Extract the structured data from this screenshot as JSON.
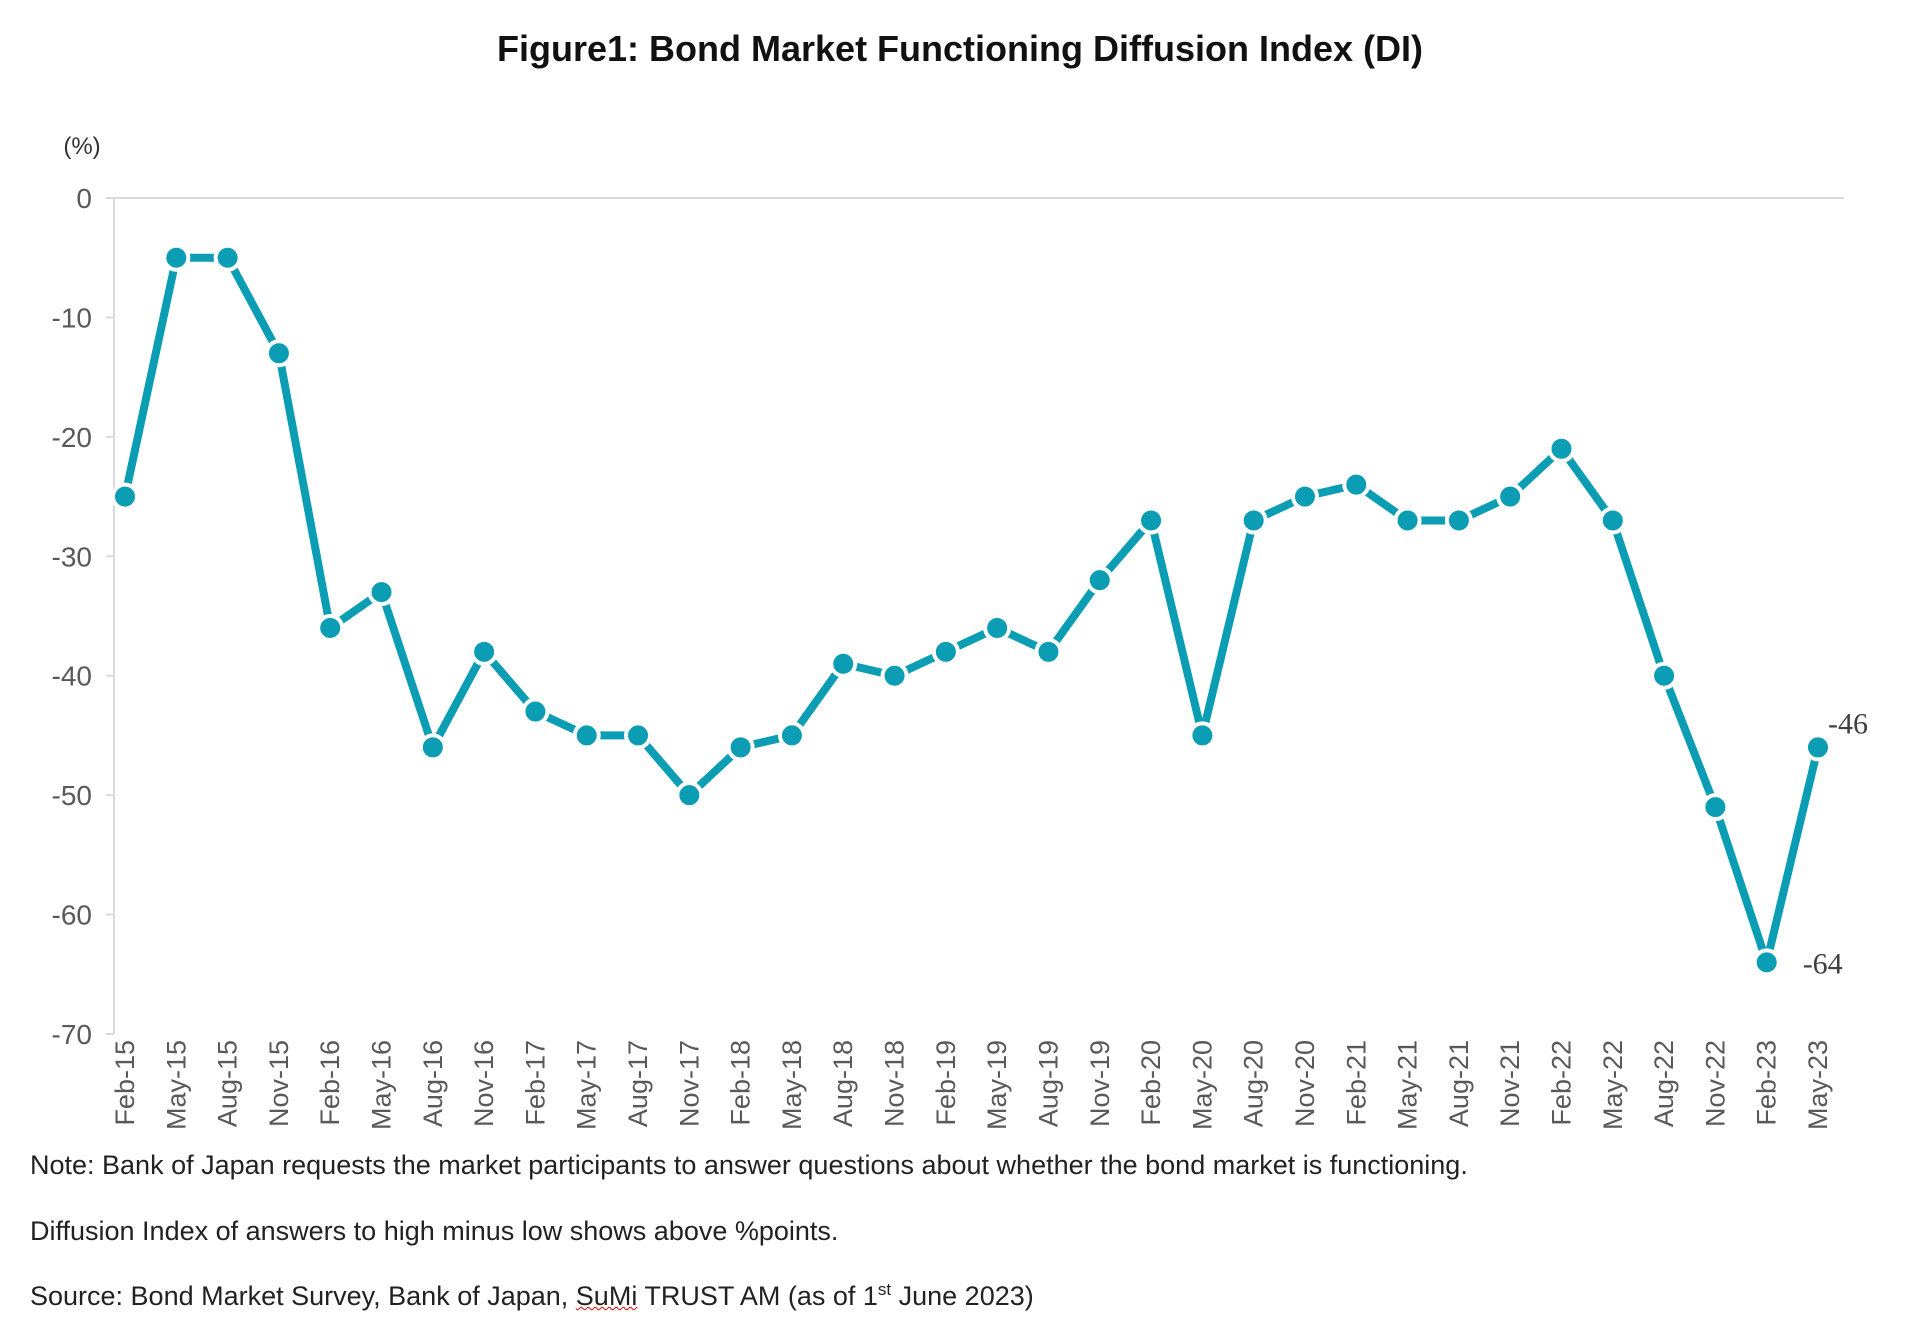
{
  "chart_data": {
    "type": "line",
    "title": "Figure1: Bond Market Functioning Diffusion Index (DI)",
    "ylabel": "(%)",
    "xlabel": "",
    "ylim": [
      -70,
      0
    ],
    "yticks": [
      0,
      -10,
      -20,
      -30,
      -40,
      -50,
      -60,
      -70
    ],
    "grid": false,
    "color": "#0a9db3",
    "categories": [
      "Feb-15",
      "May-15",
      "Aug-15",
      "Nov-15",
      "Feb-16",
      "May-16",
      "Aug-16",
      "Nov-16",
      "Feb-17",
      "May-17",
      "Aug-17",
      "Nov-17",
      "Feb-18",
      "May-18",
      "Aug-18",
      "Nov-18",
      "Feb-19",
      "May-19",
      "Aug-19",
      "Nov-19",
      "Feb-20",
      "May-20",
      "Aug-20",
      "Nov-20",
      "Feb-21",
      "May-21",
      "Aug-21",
      "Nov-21",
      "Feb-22",
      "May-22",
      "Aug-22",
      "Nov-22",
      "Feb-23",
      "May-23"
    ],
    "values": [
      -25,
      -5,
      -5,
      -13,
      -36,
      -33,
      -46,
      -38,
      -43,
      -45,
      -45,
      -50,
      -46,
      -45,
      -39,
      -40,
      -38,
      -36,
      -38,
      -32,
      -27,
      -45,
      -27,
      -25,
      -24,
      -27,
      -27,
      -25,
      -21,
      -27,
      -40,
      -51,
      -64,
      -46
    ],
    "data_labels": [
      {
        "category": "Feb-23",
        "text": "-64"
      },
      {
        "category": "May-23",
        "text": "-46"
      }
    ]
  },
  "notes": {
    "line1": "Note: Bank of Japan requests the market participants to answer questions about whether the bond market is functioning.",
    "line2": "Diffusion Index of answers to high minus low shows above %points.",
    "source_prefix": "Source: Bond Market Survey, Bank of Japan, ",
    "source_underlined": "SuMi",
    "source_mid": " TRUST AM (as of 1",
    "source_sup": "st",
    "source_end": " June 2023)"
  }
}
